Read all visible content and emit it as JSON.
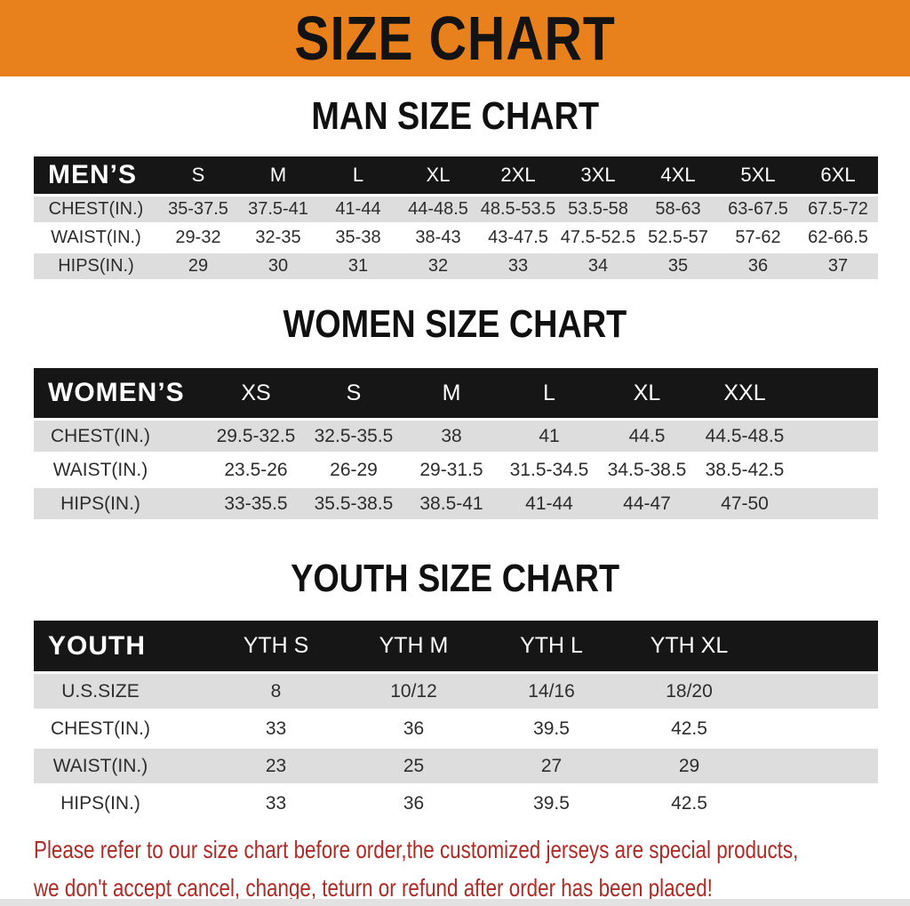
{
  "banner": {
    "title": "SIZE CHART"
  },
  "colors": {
    "banner_bg": "#E8811B",
    "table_header_bg": "#161616",
    "row_stripe": "#DDDDDD",
    "footer_text": "#AE2B26"
  },
  "sections": {
    "men": {
      "heading": "MAN SIZE CHART",
      "corner": "MEN’S",
      "sizes": [
        "S",
        "M",
        "L",
        "XL",
        "2XL",
        "3XL",
        "4XL",
        "5XL",
        "6XL"
      ],
      "rows": [
        {
          "label": "CHEST(IN.)",
          "values": [
            "35-37.5",
            "37.5-41",
            "41-44",
            "44-48.5",
            "48.5-53.5",
            "53.5-58",
            "58-63",
            "63-67.5",
            "67.5-72"
          ]
        },
        {
          "label": "WAIST(IN.)",
          "values": [
            "29-32",
            "32-35",
            "35-38",
            "38-43",
            "43-47.5",
            "47.5-52.5",
            "52.5-57",
            "57-62",
            "62-66.5"
          ]
        },
        {
          "label": "HIPS(IN.)",
          "values": [
            "29",
            "30",
            "31",
            "32",
            "33",
            "34",
            "35",
            "36",
            "37"
          ]
        }
      ]
    },
    "women": {
      "heading": "WOMEN SIZE CHART",
      "corner": "WOMEN’S",
      "sizes": [
        "XS",
        "S",
        "M",
        "L",
        "XL",
        "XXL"
      ],
      "rows": [
        {
          "label": "CHEST(IN.)",
          "values": [
            "29.5-32.5",
            "32.5-35.5",
            "38",
            "41",
            "44.5",
            "44.5-48.5"
          ]
        },
        {
          "label": "WAIST(IN.)",
          "values": [
            "23.5-26",
            "26-29",
            "29-31.5",
            "31.5-34.5",
            "34.5-38.5",
            "38.5-42.5"
          ]
        },
        {
          "label": "HIPS(IN.)",
          "values": [
            "33-35.5",
            "35.5-38.5",
            "38.5-41",
            "41-44",
            "44-47",
            "47-50"
          ]
        }
      ]
    },
    "youth": {
      "heading": "YOUTH SIZE CHART",
      "corner": "YOUTH",
      "sizes": [
        "YTH S",
        "YTH M",
        "YTH L",
        "YTH XL"
      ],
      "rows": [
        {
          "label": "U.S.SIZE",
          "values": [
            "8",
            "10/12",
            "14/16",
            "18/20"
          ]
        },
        {
          "label": "CHEST(IN.)",
          "values": [
            "33",
            "36",
            "39.5",
            "42.5"
          ]
        },
        {
          "label": "WAIST(IN.)",
          "values": [
            "23",
            "25",
            "27",
            "29"
          ]
        },
        {
          "label": "HIPS(IN.)",
          "values": [
            "33",
            "36",
            "39.5",
            "42.5"
          ]
        }
      ]
    }
  },
  "footer": {
    "line1": "Please refer to our size chart before order,the customized jerseys are special products,",
    "line2": "we don't accept cancel, change, teturn or refund after order has been placed!"
  }
}
